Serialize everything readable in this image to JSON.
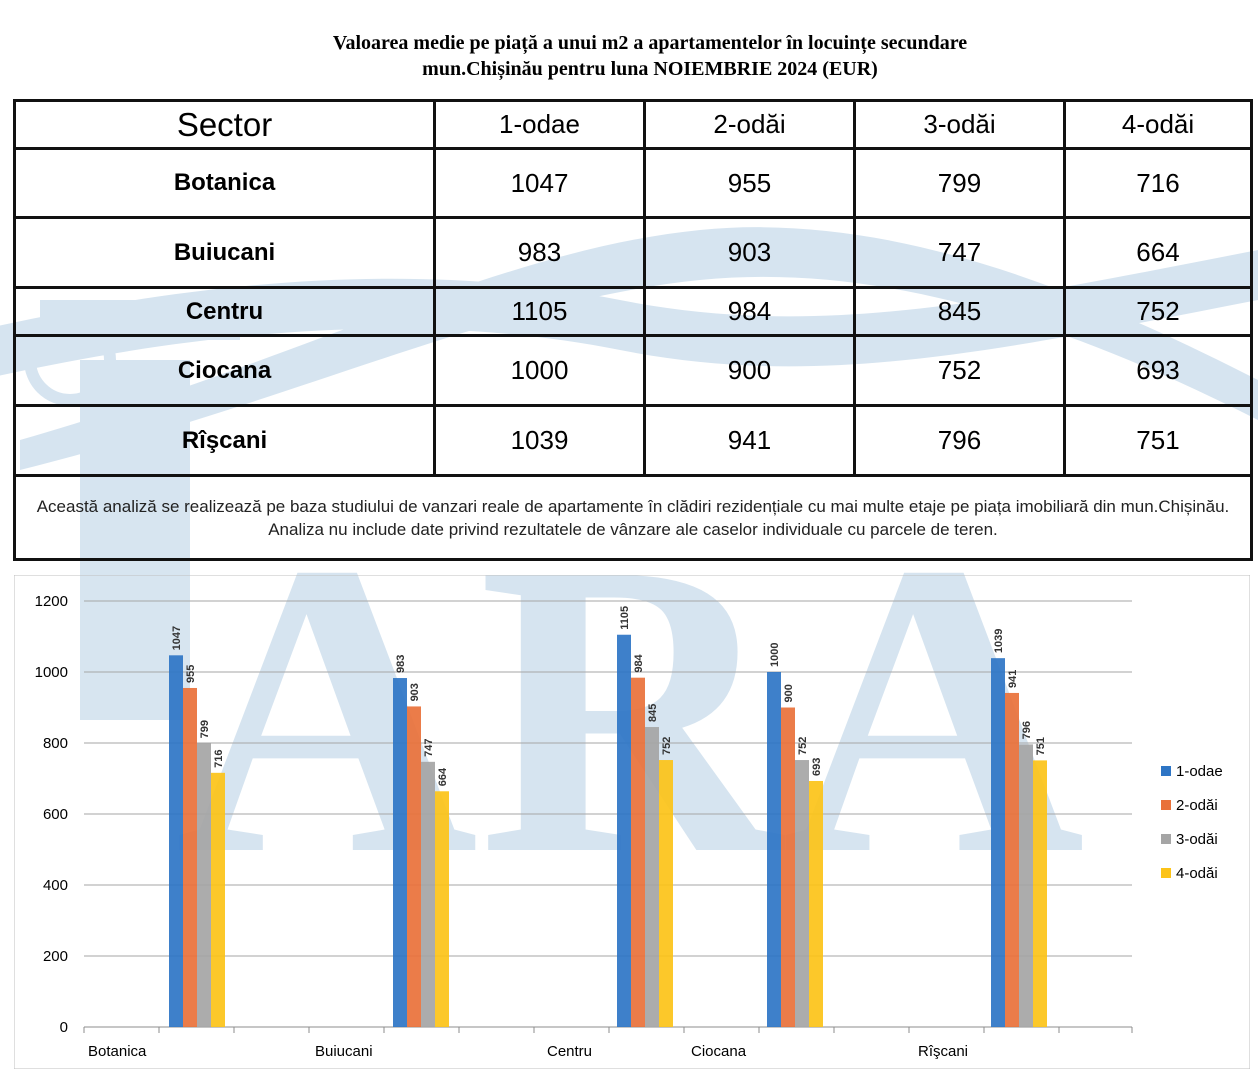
{
  "title": {
    "line1": "Valoarea medie pe piață a unui m2 a apartamentelor în locuințe secundare",
    "line2": "mun.Chișinău pentru luna NOIEMBRIE 2024 (EUR)"
  },
  "table": {
    "headers": [
      "Sector",
      "1-odae",
      "2-odăi",
      "3-odăi",
      "4-odăi"
    ],
    "rows": [
      [
        "Botanica",
        "1047",
        "955",
        "799",
        "716"
      ],
      [
        "Buiucani",
        "983",
        "903",
        "747",
        "664"
      ],
      [
        "Centru",
        "1105",
        "984",
        "845",
        "752"
      ],
      [
        "Ciocana",
        "1000",
        "900",
        "752",
        "693"
      ],
      [
        "Rîşcani",
        "1039",
        "941",
        "796",
        "751"
      ]
    ],
    "note": "Această analiză se realizează pe baza studiului de vanzari reale de apartamente în clădiri rezidențiale cu mai multe etaje pe piața imobiliară       din mun.Chișinău. Analiza nu include date privind rezultatele de vânzare ale caselor individuale cu parcele de teren."
  },
  "watermark": {
    "text": "ARA",
    "color": "#c9dceb"
  },
  "chart_data": {
    "type": "bar",
    "categories": [
      "Botanica",
      "Buiucani",
      "Centru",
      "Ciocana",
      "Rîşcani"
    ],
    "series": [
      {
        "name": "1-odae",
        "color": "#2e75c5",
        "values": [
          1047,
          983,
          1105,
          1000,
          1039
        ]
      },
      {
        "name": "2-odăi",
        "color": "#e9713a",
        "values": [
          955,
          903,
          984,
          900,
          941
        ]
      },
      {
        "name": "3-odăi",
        "color": "#a5a5a5",
        "values": [
          799,
          747,
          845,
          752,
          796
        ]
      },
      {
        "name": "4-odăi",
        "color": "#fcc318",
        "values": [
          716,
          664,
          752,
          693,
          751
        ]
      }
    ],
    "ylim": [
      0,
      1200
    ],
    "yticks": [
      0,
      200,
      400,
      600,
      800,
      1000,
      1200
    ],
    "grid": true,
    "legend": "right",
    "data_labels": true
  }
}
